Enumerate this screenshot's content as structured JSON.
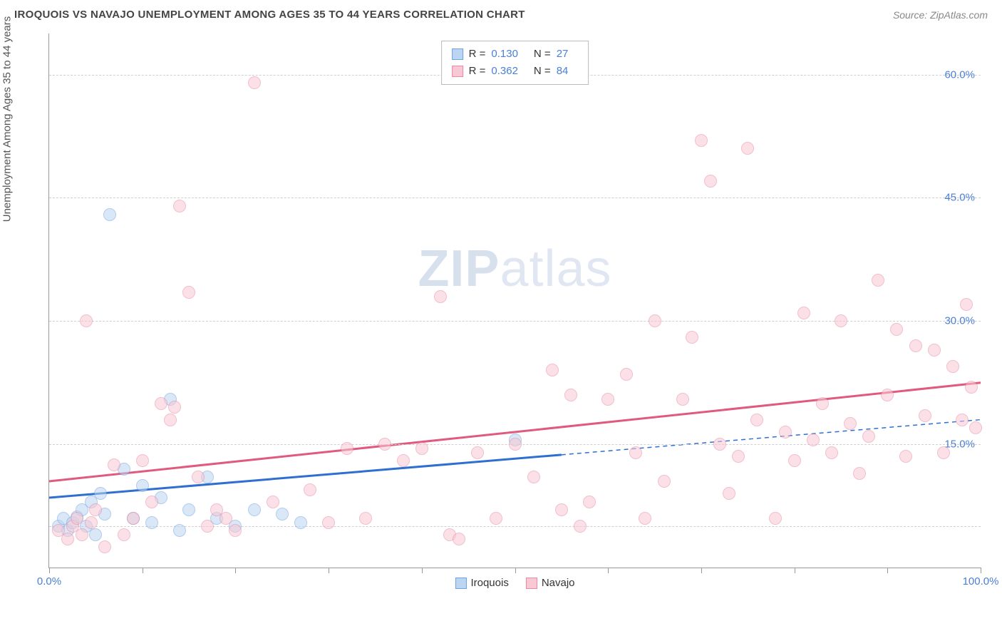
{
  "header": {
    "title": "IROQUOIS VS NAVAJO UNEMPLOYMENT AMONG AGES 35 TO 44 YEARS CORRELATION CHART",
    "source": "Source: ZipAtlas.com"
  },
  "watermark": {
    "part1": "ZIP",
    "part2": "atlas"
  },
  "chart": {
    "type": "scatter",
    "y_label": "Unemployment Among Ages 35 to 44 years",
    "xlim": [
      0,
      100
    ],
    "ylim": [
      0,
      65
    ],
    "x_ticks": [
      0,
      10,
      20,
      30,
      40,
      50,
      60,
      70,
      80,
      90,
      100
    ],
    "x_tick_labels": {
      "0": "0.0%",
      "100": "100.0%"
    },
    "y_gridlines": [
      5,
      15,
      30,
      45,
      60
    ],
    "y_tick_labels": {
      "15": "15.0%",
      "30": "30.0%",
      "45": "45.0%",
      "60": "60.0%"
    },
    "background_color": "#ffffff",
    "grid_color": "#d0d0d0",
    "axis_color": "#999999",
    "tick_label_color": "#4a7fd4",
    "label_fontsize": 15,
    "title_fontsize": 15,
    "point_radius": 9,
    "point_opacity": 0.55,
    "series": [
      {
        "name": "Iroquois",
        "fill": "#bcd5f2",
        "stroke": "#6fa3e0",
        "trend_color": "#2f6fd0",
        "trend_width": 3,
        "trend": {
          "x1": 0,
          "y1": 8.5,
          "x2": 100,
          "y2": 18.0,
          "solid_until_x": 55
        },
        "stats": {
          "R": "0.130",
          "N": "27"
        },
        "points": [
          [
            1,
            5.0
          ],
          [
            1.5,
            6.0
          ],
          [
            2,
            4.5
          ],
          [
            2.5,
            5.5
          ],
          [
            3,
            6.2
          ],
          [
            3.5,
            7.0
          ],
          [
            4,
            5.0
          ],
          [
            4.5,
            8.0
          ],
          [
            5,
            4.0
          ],
          [
            5.5,
            9.0
          ],
          [
            6,
            6.5
          ],
          [
            6.5,
            43.0
          ],
          [
            8,
            12.0
          ],
          [
            9,
            6.0
          ],
          [
            10,
            10.0
          ],
          [
            11,
            5.5
          ],
          [
            12,
            8.5
          ],
          [
            13,
            20.5
          ],
          [
            14,
            4.5
          ],
          [
            15,
            7.0
          ],
          [
            17,
            11.0
          ],
          [
            18,
            6.0
          ],
          [
            20,
            5.0
          ],
          [
            22,
            7.0
          ],
          [
            25,
            6.5
          ],
          [
            27,
            5.5
          ],
          [
            50,
            15.5
          ]
        ]
      },
      {
        "name": "Navajo",
        "fill": "#f8c9d4",
        "stroke": "#e88aa3",
        "trend_color": "#e05a7d",
        "trend_width": 3,
        "trend": {
          "x1": 0,
          "y1": 10.5,
          "x2": 100,
          "y2": 22.5,
          "solid_until_x": 100
        },
        "stats": {
          "R": "0.362",
          "N": "84"
        },
        "points": [
          [
            1,
            4.5
          ],
          [
            2,
            3.5
          ],
          [
            2.5,
            5.0
          ],
          [
            3,
            6.0
          ],
          [
            3.5,
            4.0
          ],
          [
            4,
            30.0
          ],
          [
            4.5,
            5.5
          ],
          [
            5,
            7.0
          ],
          [
            6,
            2.5
          ],
          [
            7,
            12.5
          ],
          [
            8,
            4.0
          ],
          [
            9,
            6.0
          ],
          [
            10,
            13.0
          ],
          [
            11,
            8.0
          ],
          [
            12,
            20.0
          ],
          [
            13,
            18.0
          ],
          [
            13.5,
            19.5
          ],
          [
            14,
            44.0
          ],
          [
            15,
            33.5
          ],
          [
            16,
            11.0
          ],
          [
            17,
            5.0
          ],
          [
            18,
            7.0
          ],
          [
            19,
            6.0
          ],
          [
            20,
            4.5
          ],
          [
            22,
            59.0
          ],
          [
            24,
            8.0
          ],
          [
            28,
            9.5
          ],
          [
            30,
            5.5
          ],
          [
            32,
            14.5
          ],
          [
            34,
            6.0
          ],
          [
            36,
            15.0
          ],
          [
            38,
            13.0
          ],
          [
            40,
            14.5
          ],
          [
            42,
            33.0
          ],
          [
            43,
            4.0
          ],
          [
            44,
            3.5
          ],
          [
            46,
            14.0
          ],
          [
            48,
            6.0
          ],
          [
            50,
            15.0
          ],
          [
            52,
            11.0
          ],
          [
            54,
            24.0
          ],
          [
            55,
            7.0
          ],
          [
            56,
            21.0
          ],
          [
            57,
            5.0
          ],
          [
            58,
            8.0
          ],
          [
            60,
            20.5
          ],
          [
            62,
            23.5
          ],
          [
            63,
            14.0
          ],
          [
            64,
            6.0
          ],
          [
            65,
            30.0
          ],
          [
            66,
            10.5
          ],
          [
            68,
            20.5
          ],
          [
            69,
            28.0
          ],
          [
            70,
            52.0
          ],
          [
            71,
            47.0
          ],
          [
            72,
            15.0
          ],
          [
            73,
            9.0
          ],
          [
            74,
            13.5
          ],
          [
            75,
            51.0
          ],
          [
            76,
            18.0
          ],
          [
            78,
            6.0
          ],
          [
            79,
            16.5
          ],
          [
            80,
            13.0
          ],
          [
            81,
            31.0
          ],
          [
            82,
            15.5
          ],
          [
            83,
            20.0
          ],
          [
            84,
            14.0
          ],
          [
            85,
            30.0
          ],
          [
            86,
            17.5
          ],
          [
            87,
            11.5
          ],
          [
            88,
            16.0
          ],
          [
            89,
            35.0
          ],
          [
            90,
            21.0
          ],
          [
            91,
            29.0
          ],
          [
            92,
            13.5
          ],
          [
            93,
            27.0
          ],
          [
            94,
            18.5
          ],
          [
            95,
            26.5
          ],
          [
            96,
            14.0
          ],
          [
            97,
            24.5
          ],
          [
            98,
            18.0
          ],
          [
            98.5,
            32.0
          ],
          [
            99,
            22.0
          ],
          [
            99.5,
            17.0
          ]
        ]
      }
    ],
    "legend_bottom": [
      {
        "swatch_fill": "#bcd5f2",
        "swatch_stroke": "#6fa3e0",
        "label": "Iroquois"
      },
      {
        "swatch_fill": "#f8c9d4",
        "swatch_stroke": "#e88aa3",
        "label": "Navajo"
      }
    ]
  }
}
